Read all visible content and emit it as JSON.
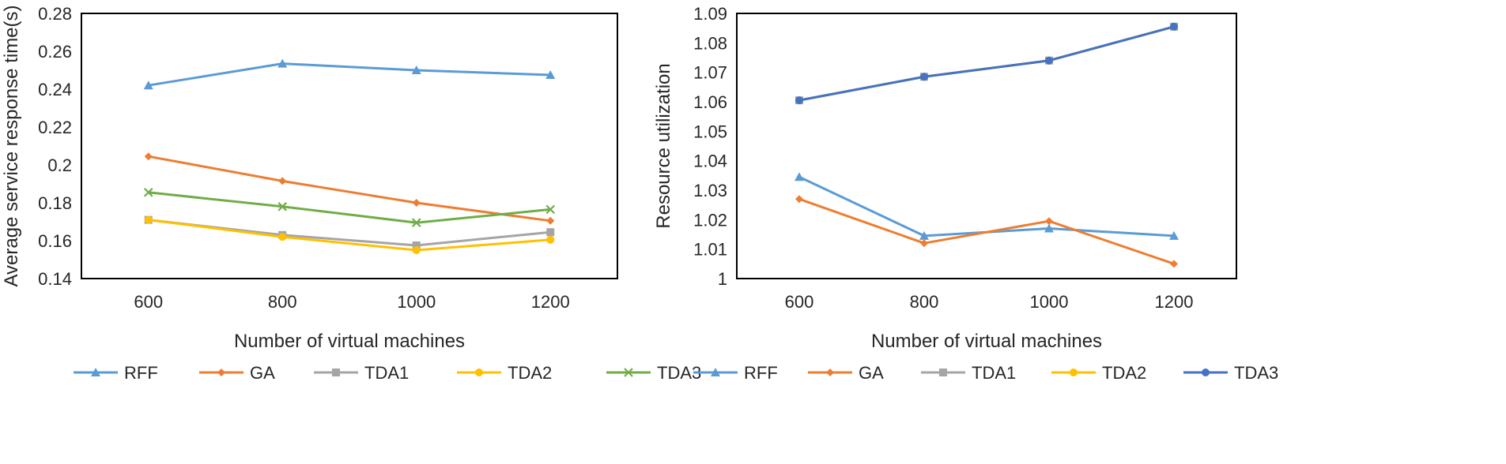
{
  "chart_data": [
    {
      "type": "line",
      "title": "",
      "xlabel": "Number of virtual machines",
      "ylabel": "Average service response time(s)",
      "categories": [
        "600",
        "800",
        "1000",
        "1200"
      ],
      "ylim": [
        0.14,
        0.28
      ],
      "yticks": [
        "0.14",
        "0.16",
        "0.18",
        "0.2",
        "0.22",
        "0.24",
        "0.26",
        "0.28"
      ],
      "grid": false,
      "legend_position": "bottom",
      "series": [
        {
          "name": "RFF",
          "color": "#5B9BD5",
          "marker": "triangle",
          "values": [
            0.242,
            0.2535,
            0.25,
            0.2475
          ]
        },
        {
          "name": "GA",
          "color": "#ED7D31",
          "marker": "diamond",
          "values": [
            0.2045,
            0.1915,
            0.18,
            0.1705
          ]
        },
        {
          "name": "TDA1",
          "color": "#A5A5A5",
          "marker": "square",
          "values": [
            0.171,
            0.163,
            0.1575,
            0.1645
          ]
        },
        {
          "name": "TDA2",
          "color": "#FFC000",
          "marker": "circle",
          "values": [
            0.171,
            0.162,
            0.155,
            0.1605
          ]
        },
        {
          "name": "TDA3",
          "color": "#70AD47",
          "marker": "x",
          "values": [
            0.1855,
            0.178,
            0.1695,
            0.1765
          ]
        }
      ]
    },
    {
      "type": "line",
      "title": "",
      "xlabel": "Number of virtual machines",
      "ylabel": "Resource utilization",
      "categories": [
        "600",
        "800",
        "1000",
        "1200"
      ],
      "ylim": [
        1.0,
        1.09
      ],
      "yticks": [
        "1",
        "1.01",
        "1.02",
        "1.03",
        "1.04",
        "1.05",
        "1.06",
        "1.07",
        "1.08",
        "1.09"
      ],
      "grid": false,
      "legend_position": "bottom",
      "series": [
        {
          "name": "RFF",
          "color": "#5B9BD5",
          "marker": "triangle",
          "values": [
            1.0345,
            1.0145,
            1.017,
            1.0145
          ]
        },
        {
          "name": "GA",
          "color": "#ED7D31",
          "marker": "diamond",
          "values": [
            1.027,
            1.012,
            1.0195,
            1.005
          ]
        },
        {
          "name": "TDA1",
          "color": "#A5A5A5",
          "marker": "square",
          "values": [
            1.0605,
            1.0685,
            1.074,
            1.0855
          ]
        },
        {
          "name": "TDA2",
          "color": "#FFC000",
          "marker": "circle",
          "values": [
            1.0605,
            1.0685,
            1.074,
            1.0855
          ]
        },
        {
          "name": "TDA3",
          "color": "#4472C4",
          "marker": "circle",
          "values": [
            1.0605,
            1.0685,
            1.074,
            1.0855
          ]
        }
      ]
    }
  ]
}
